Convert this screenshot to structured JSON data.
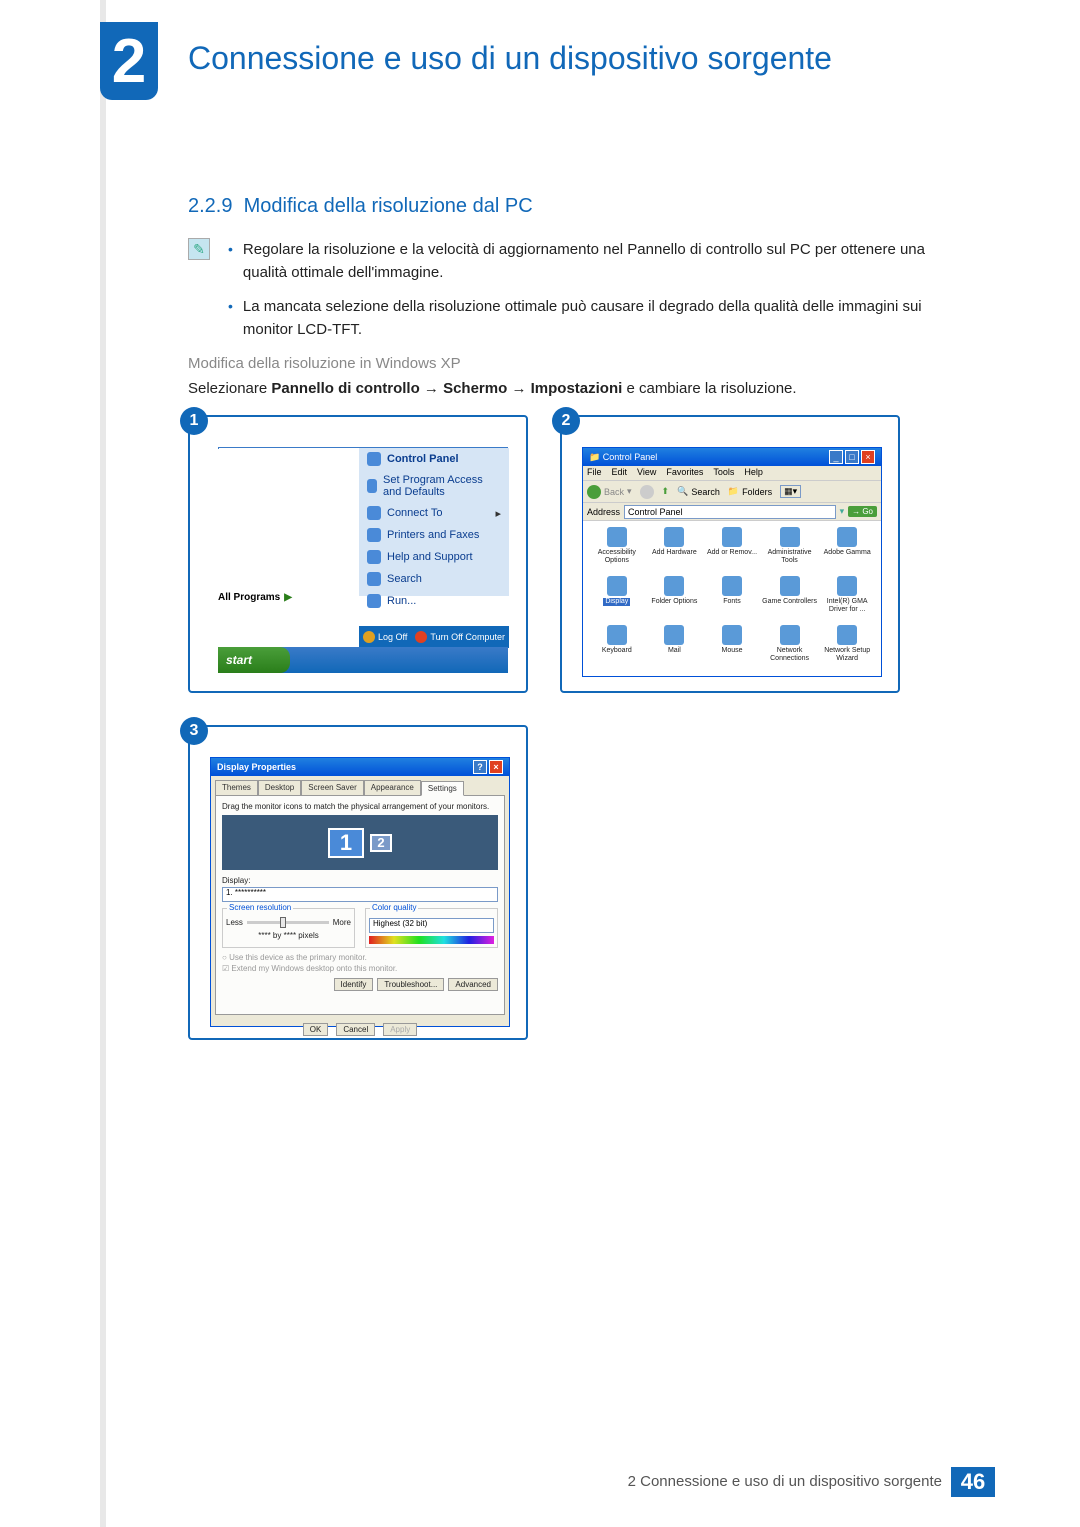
{
  "chapter": {
    "number": "2",
    "title": "Connessione e uso di un dispositivo sorgente"
  },
  "section": {
    "number": "2.2.9",
    "title": "Modifica della risoluzione dal PC"
  },
  "bullets": [
    "Regolare la risoluzione e la velocità di aggiornamento nel Pannello di controllo sul PC per ottenere una qualità ottimale dell'immagine.",
    "La mancata selezione della risoluzione ottimale può causare il degrado della qualità delle immagini sui monitor LCD-TFT."
  ],
  "subheading": "Modifica della risoluzione in Windows XP",
  "instruction": {
    "pre": "Selezionare ",
    "b1": "Pannello di controllo",
    "arr": " → ",
    "b2": "Schermo",
    "b3": "Impostazioni",
    "post": " e cambiare la risoluzione."
  },
  "fig1": {
    "num": "1",
    "right_items": [
      {
        "label": "Control Panel",
        "bold": true
      },
      {
        "label": "Set Program Access and Defaults",
        "bold": false
      },
      {
        "label": "Connect To",
        "bold": false,
        "arrow": true
      },
      {
        "label": "Printers and Faxes",
        "bold": false
      },
      {
        "label": "Help and Support",
        "bold": false
      },
      {
        "label": "Search",
        "bold": false
      },
      {
        "label": "Run...",
        "bold": false
      }
    ],
    "all_programs": "All Programs",
    "logoff": "Log Off",
    "turnoff": "Turn Off Computer",
    "start": "start"
  },
  "fig2": {
    "num": "2",
    "title": "Control Panel",
    "menus": [
      "File",
      "Edit",
      "View",
      "Favorites",
      "Tools",
      "Help"
    ],
    "toolbar": {
      "back": "Back",
      "search": "Search",
      "folders": "Folders"
    },
    "address_label": "Address",
    "address_value": "Control Panel",
    "go": "Go",
    "icons": [
      "Accessibility Options",
      "Add Hardware",
      "Add or Remov...",
      "Administrative Tools",
      "Adobe Gamma",
      "Display",
      "Folder Options",
      "Fonts",
      "Game Controllers",
      "Intel(R) GMA Driver for ...",
      "Keyboard",
      "Mail",
      "Mouse",
      "Network Connections",
      "Network Setup Wizard"
    ],
    "selected_index": 5
  },
  "fig3": {
    "num": "3",
    "title": "Display Properties",
    "tabs": [
      "Themes",
      "Desktop",
      "Screen Saver",
      "Appearance",
      "Settings"
    ],
    "active_tab": 4,
    "hint": "Drag the monitor icons to match the physical arrangement of your monitors.",
    "mon1": "1",
    "mon2": "2",
    "display_label": "Display:",
    "display_value": "1. **********",
    "res_group": "Screen resolution",
    "less": "Less",
    "more": "More",
    "res_text": "**** by **** pixels",
    "color_group": "Color quality",
    "color_value": "Highest (32 bit)",
    "check1": "Use this device as the primary monitor.",
    "check2": "Extend my Windows desktop onto this monitor.",
    "identify": "Identify",
    "troubleshoot": "Troubleshoot...",
    "advanced": "Advanced",
    "ok": "OK",
    "cancel": "Cancel",
    "apply": "Apply"
  },
  "footer": {
    "text": "2 Connessione e uso di un dispositivo sorgente",
    "page": "46"
  }
}
